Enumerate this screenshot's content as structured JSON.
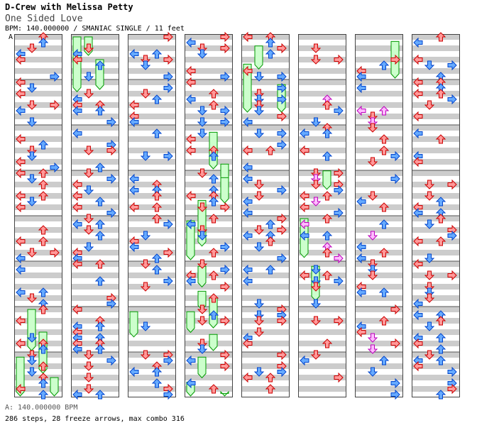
{
  "song": {
    "artist": "D-Crew with Melissa Petty",
    "title": "One Sided Love",
    "meta": "BPM: 140.000000 / SMANIAC SINGLE / 11 feet",
    "marker": "A"
  },
  "footer": {
    "bpm_line": "A: 140.000000 BPM",
    "stats_line": "286 steps, 28 freeze arrows, max combo 316"
  },
  "colors": {
    "stripe": "#cccccc",
    "red": "#ff9999",
    "red_stroke": "#cc0000",
    "blue": "#66aaff",
    "blue_stroke": "#0044cc",
    "pink": "#ffbbff",
    "pink_stroke": "#bb00bb",
    "freeze": "#ccffcc",
    "freeze_stroke": "#009900"
  },
  "chart_data": {
    "columns": 8,
    "measures_per_column": 8,
    "lanes": [
      "left",
      "down",
      "up",
      "right"
    ],
    "freezes": [
      [
        1,
        0,
        0.0,
        1.3
      ],
      [
        1,
        1,
        0.0,
        0.5
      ],
      [
        1,
        2,
        0.5,
        1.25
      ],
      [
        3,
        2,
        2.1,
        3.0
      ],
      [
        3,
        3,
        2.8,
        3.3
      ],
      [
        3,
        3,
        3.1,
        3.75
      ],
      [
        3,
        1,
        3.6,
        4.7
      ],
      [
        3,
        0,
        4.05,
        5.0
      ],
      [
        3,
        1,
        5.05,
        5.6
      ],
      [
        3,
        1,
        5.6,
        6.1
      ],
      [
        3,
        2,
        5.75,
        6.5
      ],
      [
        3,
        0,
        6.05,
        6.6
      ],
      [
        3,
        2,
        6.55,
        7.0
      ],
      [
        3,
        1,
        7.05,
        7.6
      ],
      [
        3,
        0,
        7.6,
        8.0
      ],
      [
        3,
        3,
        7.85,
        8.2
      ],
      [
        4,
        1,
        0.2,
        0.8
      ],
      [
        4,
        0,
        0.6,
        1.75
      ],
      [
        4,
        3,
        1.05,
        1.75
      ],
      [
        5,
        0,
        4.0,
        4.95
      ],
      [
        5,
        1,
        5.05,
        5.9
      ],
      [
        6,
        3,
        0.1,
        1.0
      ],
      [
        0,
        1,
        6.0,
        7.0
      ],
      [
        0,
        2,
        6.5,
        7.5
      ],
      [
        0,
        0,
        7.05,
        8.0
      ],
      [
        0,
        3,
        7.5,
        8.0
      ],
      [
        2,
        0,
        6.05,
        6.7
      ],
      [
        5,
        2,
        2.95,
        3.45
      ]
    ]
  }
}
